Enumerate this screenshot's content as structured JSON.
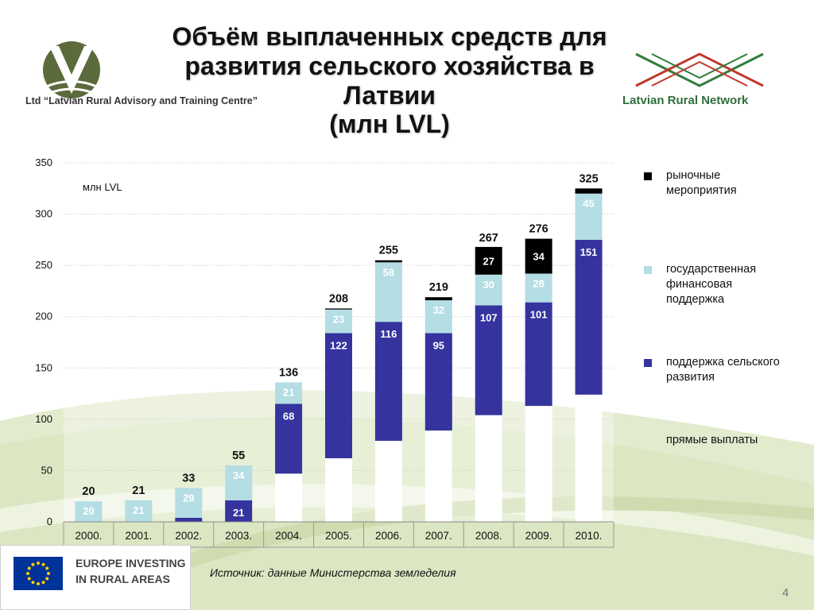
{
  "title": {
    "line1": "Объём выплаченных средств для",
    "line2": "развития сельского хозяйства в",
    "line3": "Латвии",
    "line4": "(млн LVL)"
  },
  "logos": {
    "left_org": "Ltd “Latvian Rural Advisory and Training Centre”",
    "right_org": "Latvian Rural Network",
    "eu_line1": "EUROPE INVESTING",
    "eu_line2": "IN RURAL AREAS"
  },
  "source": "Источник:  данные Министерства земледелия",
  "page_number": "4",
  "colors": {
    "market": "#000000",
    "state": "#b4dde4",
    "rural": "#35349e",
    "direct": "#ffffff",
    "bg_green": "#dde8c6"
  },
  "chart_data": {
    "type": "bar",
    "stacked": true,
    "unit_label": "млн LVL",
    "categories": [
      "2000.",
      "2001.",
      "2002.",
      "2003.",
      "2004.",
      "2005.",
      "2006.",
      "2007.",
      "2008.",
      "2009.",
      "2010."
    ],
    "totals": [
      20,
      21,
      33,
      55,
      136,
      208,
      255,
      219,
      267,
      276,
      325
    ],
    "ylim": [
      0,
      350
    ],
    "yticks": [
      0,
      50,
      100,
      150,
      200,
      250,
      300,
      350
    ],
    "grid": true,
    "legend_position": "right",
    "series": [
      {
        "name": "прямые выплаты",
        "color_key": "direct",
        "values": [
          0,
          0,
          0,
          0,
          47,
          62,
          79,
          89,
          104,
          113,
          124
        ],
        "labels": [
          "",
          "",
          "",
          "",
          "",
          "",
          "",
          "",
          "",
          "",
          ""
        ]
      },
      {
        "name": "поддержка сельского развития",
        "color_key": "rural",
        "values": [
          0,
          0,
          4,
          21,
          68,
          122,
          116,
          95,
          107,
          101,
          151
        ],
        "labels": [
          "",
          "",
          "",
          "21",
          "68",
          "122",
          "116",
          "95",
          "107",
          "101",
          "151"
        ]
      },
      {
        "name": "государственная финансовая поддержка",
        "color_key": "state",
        "values": [
          20,
          21,
          29,
          34,
          21,
          23,
          58,
          32,
          30,
          28,
          45
        ],
        "labels": [
          "20",
          "21",
          "29",
          "34",
          "21",
          "23",
          "58",
          "32",
          "30",
          "28",
          "45"
        ]
      },
      {
        "name": "рыночные мероприятия",
        "color_key": "market",
        "values": [
          0,
          0,
          0,
          0,
          0,
          1,
          2,
          3,
          27,
          34,
          5
        ],
        "labels": [
          "",
          "",
          "",
          "",
          "",
          "",
          "",
          "",
          "27",
          "34",
          ""
        ]
      }
    ]
  }
}
